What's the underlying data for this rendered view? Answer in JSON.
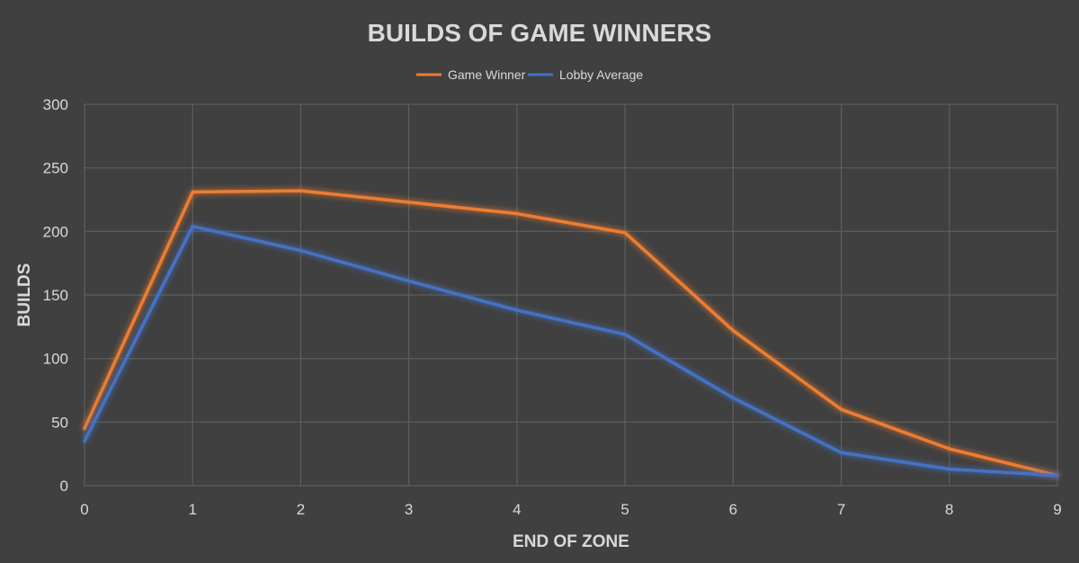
{
  "chart_data": {
    "type": "line",
    "title": "BUILDS OF GAME WINNERS",
    "xlabel": "END OF ZONE",
    "ylabel": "BUILDS",
    "x": [
      0,
      1,
      2,
      3,
      4,
      5,
      6,
      7,
      8,
      9
    ],
    "xlim": [
      0,
      9
    ],
    "ylim": [
      0,
      300
    ],
    "yticks": [
      0,
      50,
      100,
      150,
      200,
      250,
      300
    ],
    "grid": true,
    "legend_position": "top-center",
    "series": [
      {
        "name": "Game Winner",
        "color": "#ed7d31",
        "values": [
          45,
          231,
          232,
          223,
          214,
          199,
          122,
          60,
          29,
          8
        ]
      },
      {
        "name": "Lobby Average",
        "color": "#4472c4",
        "values": [
          35,
          204,
          185,
          161,
          138,
          119,
          69,
          26,
          13,
          8
        ]
      }
    ]
  }
}
